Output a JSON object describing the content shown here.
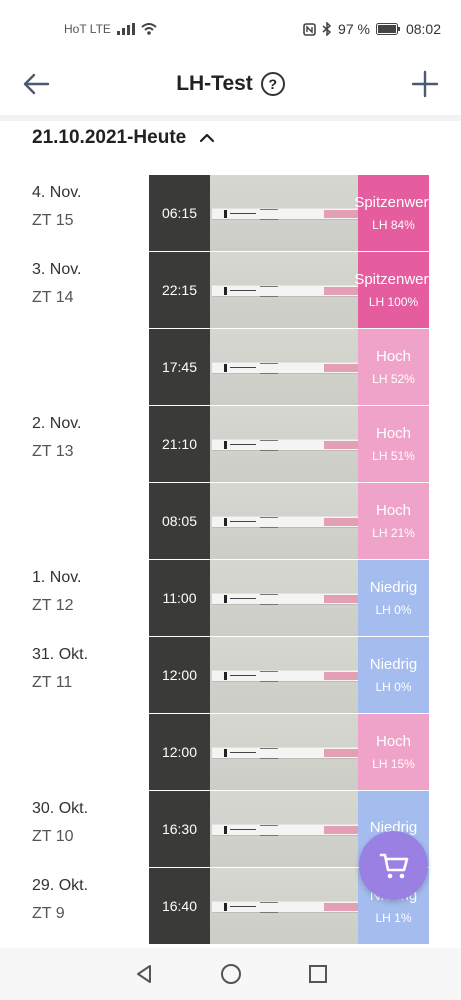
{
  "statusbar": {
    "carrier": "HoT LTE",
    "battery": "97 %",
    "time": "08:02",
    "icons": [
      "signal-icon",
      "wifi-icon",
      "nfc-icon",
      "bluetooth-icon",
      "battery-icon"
    ]
  },
  "header": {
    "title": "LH-Test",
    "help_label": "?",
    "back_icon": "arrow-left-icon",
    "add_icon": "plus-icon"
  },
  "range": {
    "label": "21.10.2021-Heute",
    "toggle_icon": "chevron-up-icon"
  },
  "level_colors": {
    "Spitzenwert": "#e55d9f",
    "Hoch": "#f0a3c8",
    "Niedrig": "#a4bcee"
  },
  "entries": [
    {
      "date": "4. Nov.",
      "cycle": "ZT 15",
      "time": "06:15",
      "level": "Spitzenwert",
      "lh": "LH 84%"
    },
    {
      "date": "3. Nov.",
      "cycle": "ZT 14",
      "time": "22:15",
      "level": "Spitzenwert",
      "lh": "LH 100%"
    },
    {
      "date": "",
      "cycle": "",
      "time": "17:45",
      "level": "Hoch",
      "lh": "LH 52%"
    },
    {
      "date": "2. Nov.",
      "cycle": "ZT 13",
      "time": "21:10",
      "level": "Hoch",
      "lh": "LH 51%"
    },
    {
      "date": "",
      "cycle": "",
      "time": "08:05",
      "level": "Hoch",
      "lh": "LH 21%"
    },
    {
      "date": "1. Nov.",
      "cycle": "ZT 12",
      "time": "11:00",
      "level": "Niedrig",
      "lh": "LH 0%"
    },
    {
      "date": "31. Okt.",
      "cycle": "ZT 11",
      "time": "12:00",
      "level": "Niedrig",
      "lh": "LH 0%"
    },
    {
      "date": "",
      "cycle": "",
      "time": "12:00",
      "level": "Hoch",
      "lh": "LH 15%"
    },
    {
      "date": "30. Okt.",
      "cycle": "ZT 10",
      "time": "16:30",
      "level": "Niedrig",
      "lh": ""
    },
    {
      "date": "29. Okt.",
      "cycle": "ZT 9",
      "time": "16:40",
      "level": "Niedrig",
      "lh": "LH 1%"
    }
  ],
  "fab": {
    "icon": "cart-icon"
  },
  "navbar": {
    "icons": [
      "nav-back-icon",
      "nav-home-icon",
      "nav-recents-icon"
    ]
  }
}
